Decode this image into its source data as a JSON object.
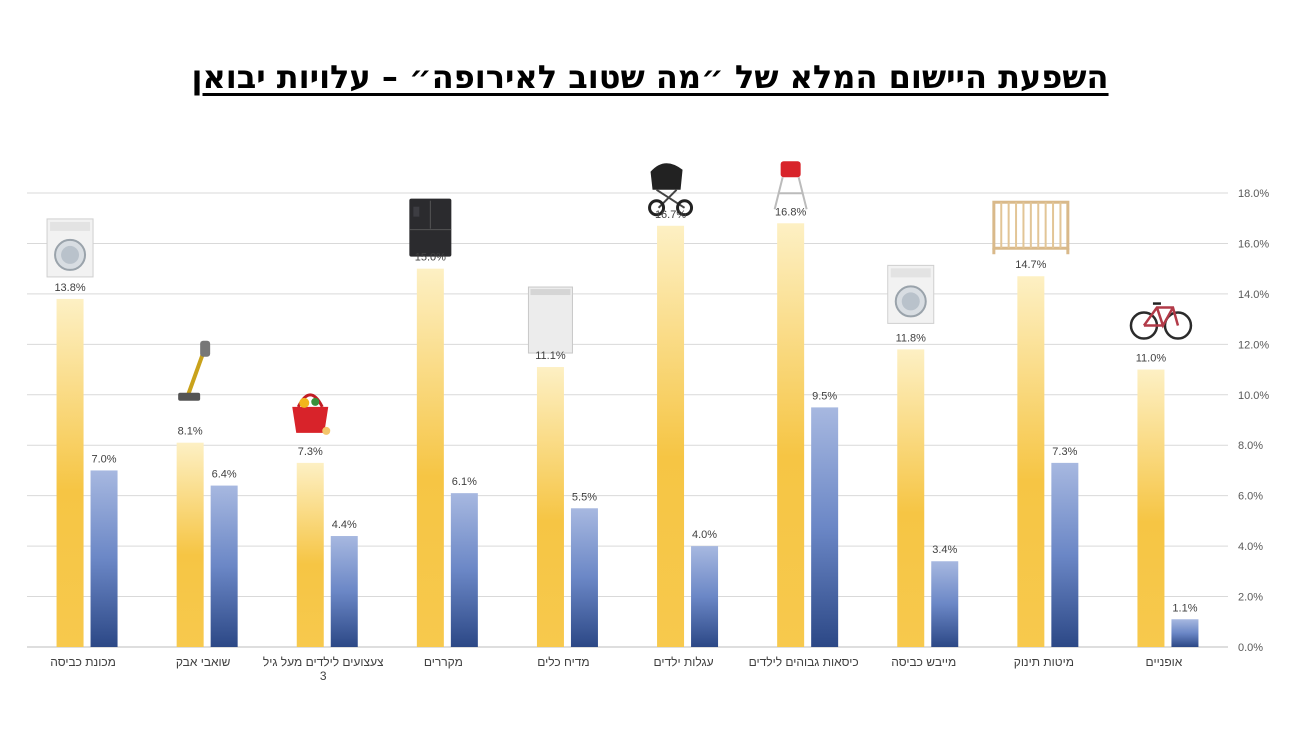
{
  "title": "השפעת היישום המלא של ״מה שטוב לאירופה״ – עלויות יבואן",
  "chart_data": {
    "type": "bar",
    "title": "השפעת היישום המלא של ״מה שטוב לאירופה״ – עלויות יבואן",
    "categories": [
      "מכונת כביסה",
      "שואבי אבק",
      "צעצועים לילדים מעל גיל 3",
      "מקררים",
      "מדיח כלים",
      "עגלות ילדים",
      "כיסאות גבוהים לילדים",
      "מייבש כביסה",
      "מיטות תינוק",
      "אופניים"
    ],
    "category_icons": [
      "washing-machine-icon",
      "vacuum-cleaner-icon",
      "toy-basket-icon",
      "refrigerator-icon",
      "dishwasher-icon",
      "stroller-icon",
      "high-chair-icon",
      "dryer-icon",
      "crib-icon",
      "bicycle-icon"
    ],
    "series": [
      {
        "color": "#f5c242",
        "values": [
          13.8,
          8.1,
          7.3,
          15.0,
          11.1,
          16.7,
          16.8,
          11.8,
          14.7,
          11.0
        ]
      },
      {
        "color": "#4a6cb3",
        "values": [
          7.0,
          6.4,
          4.4,
          6.1,
          5.5,
          4.0,
          9.5,
          3.4,
          7.3,
          1.1
        ]
      }
    ],
    "data_labels": [
      [
        "13.8%",
        "8.1%",
        "7.3%",
        "15.0%",
        "11.1%",
        "16.7%",
        "16.8%",
        "11.8%",
        "14.7%",
        "11.0%"
      ],
      [
        "7.0%",
        "6.4%",
        "4.4%",
        "6.1%",
        "5.5%",
        "4.0%",
        "9.5%",
        "3.4%",
        "7.3%",
        "1.1%"
      ]
    ],
    "y_ticks": [
      "0.0%",
      "2.0%",
      "4.0%",
      "6.0%",
      "8.0%",
      "10.0%",
      "12.0%",
      "14.0%",
      "16.0%",
      "18.0%"
    ],
    "ylim": [
      0,
      18
    ],
    "y_axis_position": "right",
    "grid": true,
    "legend": "none",
    "xlabel": "",
    "ylabel": ""
  }
}
